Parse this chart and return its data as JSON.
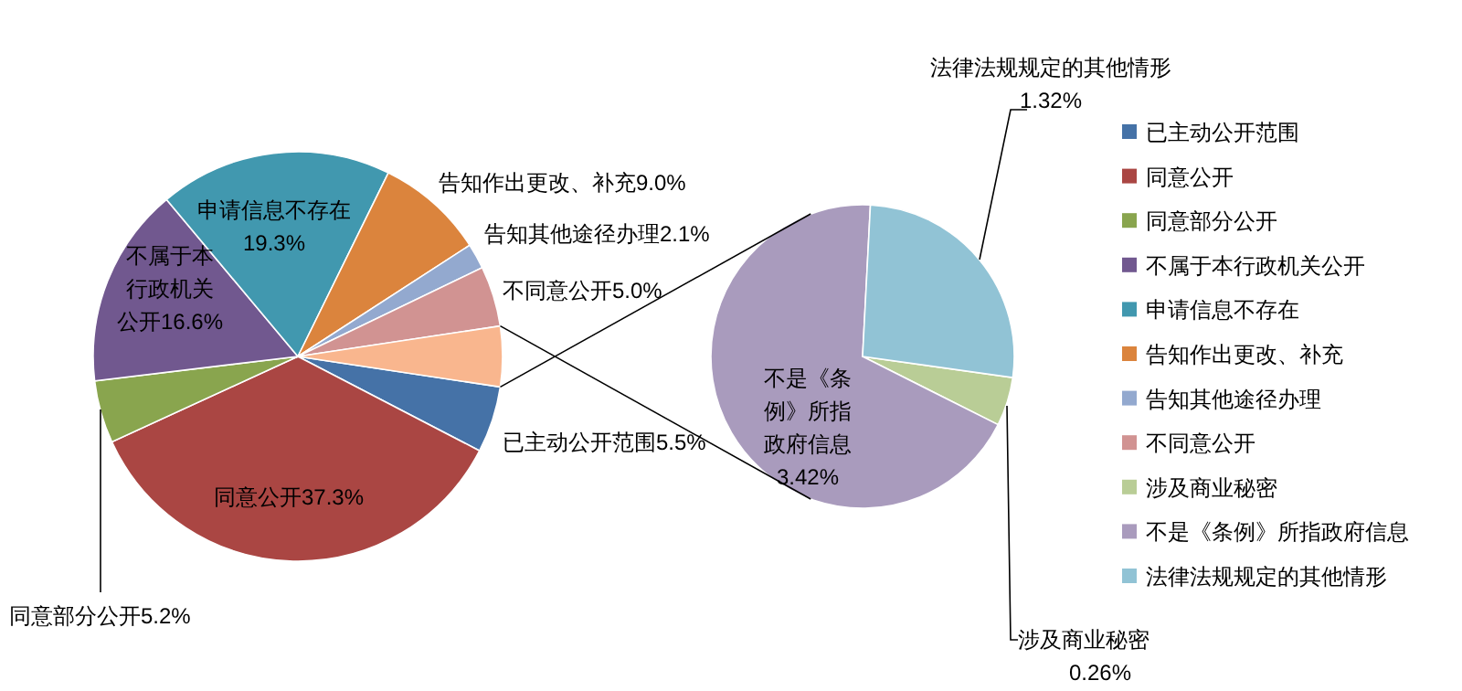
{
  "chart_data": [
    {
      "type": "pie",
      "legend": "right",
      "categories": [
        "已主动公开范围",
        "同意公开",
        "同意部分公开",
        "不属于本行政机关公开",
        "申请信息不存在",
        "告知作出更改、补充",
        "告知其他途径办理",
        "不同意公开",
        null
      ],
      "values": [
        5.5,
        37.3,
        5.2,
        16.6,
        19.3,
        9.0,
        2.1,
        5.0,
        5.0
      ],
      "colors": [
        "#4572a7",
        "#aa4643",
        "#89a54e",
        "#71588f",
        "#4198af",
        "#db843d",
        "#93a9cf",
        "#d19392",
        "#f9b68e"
      ],
      "value_labels": [
        "已主动公开范围5.5%",
        "同意公开37.3%",
        "同意部分公开5.2%",
        "不属于本行政机关公开16.6%",
        "申请信息不存在19.3%",
        "告知作出更改、补充9.0%",
        "告知其他途径办理2.1%",
        "不同意公开5.0%",
        null
      ]
    },
    {
      "type": "pie",
      "legend": "right",
      "categories": [
        "涉及商业秘密",
        "不是《条例》所指政府信息",
        "法律法规规定的其他情形"
      ],
      "values": [
        0.26,
        3.42,
        1.32
      ],
      "colors": [
        "#b9cd96",
        "#a99bbd",
        "#91c3d5"
      ],
      "value_labels": [
        "涉及商业秘密0.26%",
        "不是《条例》所指政府信息3.42%",
        "法律法规规定的其他情形1.32%"
      ]
    }
  ]
}
